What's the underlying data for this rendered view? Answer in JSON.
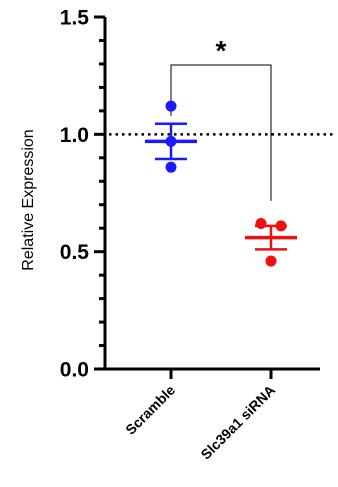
{
  "chart_data": {
    "type": "scatter",
    "title": "",
    "xlabel": "",
    "ylabel": "Relative Expression",
    "ylim": [
      0.0,
      1.5
    ],
    "yticks": [
      "0.0",
      "0.5",
      "1.0",
      "1.5"
    ],
    "categories": [
      "Scramble",
      "Slc39a1 siRNA"
    ],
    "reference_line": {
      "y": 1.0,
      "style": "dotted"
    },
    "significance": {
      "label": "*",
      "between": [
        "Scramble",
        "Slc39a1 siRNA"
      ]
    },
    "series": [
      {
        "category": "Scramble",
        "color": "#1a1aff",
        "points": [
          1.12,
          0.97,
          0.86
        ],
        "mean": 0.97,
        "error": 0.075
      },
      {
        "category": "Slc39a1 siRNA",
        "color": "#ee1111",
        "points": [
          0.62,
          0.61,
          0.46
        ],
        "mean": 0.56,
        "error": 0.05
      }
    ]
  }
}
